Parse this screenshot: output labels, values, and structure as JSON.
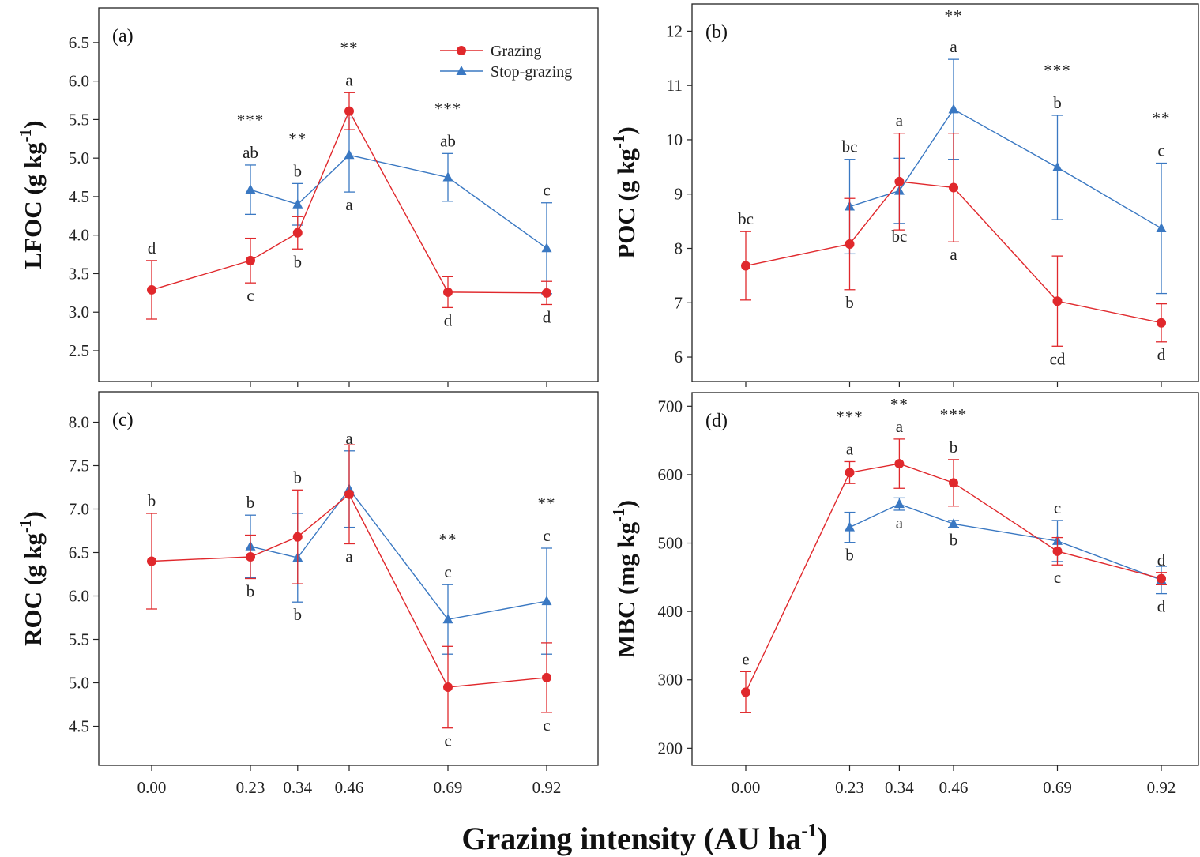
{
  "figure": {
    "xlabel_main": "Grazing intensity (AU ha",
    "xlabel_sup": "-1",
    "xlabel_end": ")"
  },
  "legend": [
    {
      "name": "Grazing",
      "color": "#e0282c",
      "marker": "circle"
    },
    {
      "name": "Stop-grazing",
      "color": "#3a78c2",
      "marker": "triangle"
    }
  ],
  "chart_data": [
    {
      "type": "line",
      "panel": "(a)",
      "ylabel_main": "LFOC (g kg",
      "ylabel_sup": "-1",
      "ylabel_end": ")",
      "ylim": [
        2.1,
        6.95
      ],
      "yticks": [
        2.5,
        3.0,
        3.5,
        4.0,
        4.5,
        5.0,
        5.5,
        6.0,
        6.5
      ],
      "ytick_labels": [
        "2.5",
        "3.0",
        "3.5",
        "4.0",
        "4.5",
        "5.0",
        "5.5",
        "6.0",
        "6.5"
      ],
      "x": [
        0.0,
        0.23,
        0.34,
        0.46,
        0.69,
        0.92
      ],
      "xtick_labels": [
        "0.00",
        "0.23",
        "0.34",
        "0.46",
        "0.69",
        "0.92"
      ],
      "series": [
        {
          "name": "Grazing",
          "values": [
            3.29,
            3.67,
            4.03,
            5.61,
            3.26,
            3.25
          ],
          "err": [
            0.38,
            0.29,
            0.21,
            0.24,
            0.2,
            0.15
          ],
          "letters": [
            "d",
            "c",
            "b",
            "a",
            "d",
            "d"
          ],
          "letter_pos": [
            "above",
            "below",
            "below",
            "above",
            "below",
            "below"
          ]
        },
        {
          "name": "Stop-grazing",
          "x": [
            0.23,
            0.34,
            0.46,
            0.69,
            0.92
          ],
          "values": [
            4.59,
            4.4,
            5.04,
            4.75,
            3.83
          ],
          "err": [
            0.32,
            0.27,
            0.48,
            0.31,
            0.59
          ],
          "letters": [
            "ab",
            "b",
            "a",
            "ab",
            "c"
          ],
          "letter_pos": [
            "above",
            "above",
            "below",
            "above",
            "above"
          ]
        }
      ],
      "significance": [
        {
          "x": 0.23,
          "label": "***"
        },
        {
          "x": 0.34,
          "label": "**"
        },
        {
          "x": 0.46,
          "label": "**"
        },
        {
          "x": 0.69,
          "label": "***"
        }
      ],
      "grid": false
    },
    {
      "type": "line",
      "panel": "(b)",
      "ylabel_main": "POC (g kg",
      "ylabel_sup": "-1",
      "ylabel_end": ")",
      "ylim": [
        5.55,
        12.5
      ],
      "yticks": [
        6,
        7,
        8,
        9,
        10,
        11,
        12
      ],
      "ytick_labels": [
        "6",
        "7",
        "8",
        "9",
        "10",
        "11",
        "12"
      ],
      "x": [
        0.0,
        0.23,
        0.34,
        0.46,
        0.69,
        0.92
      ],
      "xtick_labels": [
        "0.00",
        "0.23",
        "0.34",
        "0.46",
        "0.69",
        "0.92"
      ],
      "series": [
        {
          "name": "Grazing",
          "values": [
            7.68,
            8.08,
            9.23,
            9.12,
            7.03,
            6.63
          ],
          "err": [
            0.63,
            0.84,
            0.89,
            1.0,
            0.83,
            0.35
          ],
          "letters": [
            "bc",
            "b",
            "a",
            "a",
            "cd",
            "d"
          ],
          "letter_pos": [
            "above",
            "below",
            "above",
            "below",
            "below",
            "below"
          ]
        },
        {
          "name": "Stop-grazing",
          "x": [
            0.23,
            0.34,
            0.46,
            0.69,
            0.92
          ],
          "values": [
            8.77,
            9.06,
            10.56,
            9.49,
            8.37
          ],
          "err": [
            0.87,
            0.6,
            0.92,
            0.96,
            1.2
          ],
          "letters": [
            "bc",
            "bc",
            "a",
            "b",
            "c"
          ],
          "letter_pos": [
            "above",
            "below",
            "above",
            "above",
            "above"
          ]
        }
      ],
      "significance": [
        {
          "x": 0.46,
          "label": "**"
        },
        {
          "x": 0.69,
          "label": "***"
        },
        {
          "x": 0.92,
          "label": "**"
        }
      ],
      "grid": false
    },
    {
      "type": "line",
      "panel": "(c)",
      "ylabel_main": "ROC (g kg",
      "ylabel_sup": "-1",
      "ylabel_end": ")",
      "ylim": [
        4.05,
        8.35
      ],
      "yticks": [
        4.5,
        5.0,
        5.5,
        6.0,
        6.5,
        7.0,
        7.5,
        8.0
      ],
      "ytick_labels": [
        "4.5",
        "5.0",
        "5.5",
        "6.0",
        "6.5",
        "7.0",
        "7.5",
        "8.0"
      ],
      "x": [
        0.0,
        0.23,
        0.34,
        0.46,
        0.69,
        0.92
      ],
      "xtick_labels": [
        "0.00",
        "0.23",
        "0.34",
        "0.46",
        "0.69",
        "0.92"
      ],
      "series": [
        {
          "name": "Grazing",
          "values": [
            6.4,
            6.45,
            6.68,
            7.17,
            4.95,
            5.06
          ],
          "err": [
            0.55,
            0.25,
            0.54,
            0.57,
            0.47,
            0.4
          ],
          "letters": [
            "b",
            "b",
            "b",
            "a",
            "c",
            "c"
          ],
          "letter_pos": [
            "above",
            "below",
            "above",
            "below",
            "below",
            "below"
          ]
        },
        {
          "name": "Stop-grazing",
          "x": [
            0.23,
            0.34,
            0.46,
            0.69,
            0.92
          ],
          "values": [
            6.57,
            6.44,
            7.23,
            5.73,
            5.94
          ],
          "err": [
            0.36,
            0.51,
            0.44,
            0.4,
            0.61
          ],
          "letters": [
            "b",
            "b",
            "a",
            "c",
            "c"
          ],
          "letter_pos": [
            "above",
            "below",
            "above",
            "above",
            "above"
          ]
        }
      ],
      "significance": [
        {
          "x": 0.69,
          "label": "**"
        },
        {
          "x": 0.92,
          "label": "**"
        }
      ],
      "grid": false
    },
    {
      "type": "line",
      "panel": "(d)",
      "ylabel_main": "MBC (mg kg",
      "ylabel_sup": "-1",
      "ylabel_end": ")",
      "ylim": [
        175,
        720
      ],
      "yticks": [
        200,
        300,
        400,
        500,
        600,
        700
      ],
      "ytick_labels": [
        "200",
        "300",
        "400",
        "500",
        "600",
        "700"
      ],
      "x": [
        0.0,
        0.23,
        0.34,
        0.46,
        0.69,
        0.92
      ],
      "xtick_labels": [
        "0.00",
        "0.23",
        "0.34",
        "0.46",
        "0.69",
        "0.92"
      ],
      "series": [
        {
          "name": "Grazing",
          "values": [
            282,
            603,
            616,
            588,
            488,
            448
          ],
          "err": [
            30,
            16,
            36,
            34,
            20,
            9
          ],
          "letters": [
            "e",
            "a",
            "a",
            "b",
            "c",
            "d"
          ],
          "letter_pos": [
            "above",
            "above",
            "above",
            "above",
            "below",
            "above"
          ]
        },
        {
          "name": "Stop-grazing",
          "x": [
            0.23,
            0.34,
            0.46,
            0.69,
            0.92
          ],
          "values": [
            523,
            557,
            528,
            503,
            446
          ],
          "err": [
            22,
            9,
            5,
            30,
            20
          ],
          "letters": [
            "b",
            "a",
            "b",
            "c",
            "d"
          ],
          "letter_pos": [
            "below",
            "below",
            "below",
            "above",
            "below"
          ]
        }
      ],
      "significance": [
        {
          "x": 0.23,
          "label": "***"
        },
        {
          "x": 0.34,
          "label": "**"
        },
        {
          "x": 0.46,
          "label": "***"
        }
      ],
      "grid": false
    }
  ]
}
